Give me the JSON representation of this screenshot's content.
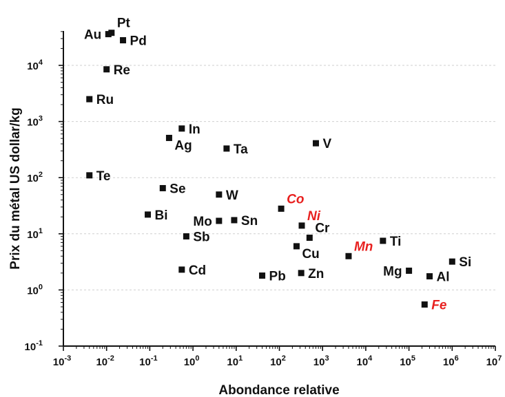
{
  "chart_data": {
    "type": "scatter",
    "xlabel": "Abondance relative",
    "ylabel": "Prix du métal US dollar/kg",
    "xscale": "log",
    "yscale": "log",
    "xlim": [
      0.001,
      10000000
    ],
    "ylim": [
      0.1,
      100000
    ],
    "x_tick_exponents": [
      -3,
      -2,
      -1,
      0,
      1,
      2,
      3,
      4,
      5,
      6,
      7
    ],
    "y_tick_exponents": [
      -1,
      0,
      1,
      2,
      3,
      4
    ],
    "grid": "horizontal dashed",
    "point_color": "#111111",
    "label_color": "#111111",
    "highlight_color": "#e8201f",
    "points": [
      {
        "label": "Pt",
        "x": 0.013,
        "y": 38000,
        "label_pos": "above-right",
        "highlight": false
      },
      {
        "label": "Au",
        "x": 0.011,
        "y": 36000,
        "label_pos": "left",
        "highlight": false
      },
      {
        "label": "Pd",
        "x": 0.024,
        "y": 28000,
        "label_pos": "right",
        "highlight": false
      },
      {
        "label": "Re",
        "x": 0.01,
        "y": 8500,
        "label_pos": "right",
        "highlight": false
      },
      {
        "label": "Ru",
        "x": 0.004,
        "y": 2500,
        "label_pos": "right",
        "highlight": false
      },
      {
        "label": "In",
        "x": 0.55,
        "y": 750,
        "label_pos": "right",
        "highlight": false
      },
      {
        "label": "Ag",
        "x": 0.28,
        "y": 510,
        "label_pos": "below-right",
        "highlight": false
      },
      {
        "label": "Ta",
        "x": 6,
        "y": 330,
        "label_pos": "right",
        "highlight": false
      },
      {
        "label": "V",
        "x": 700,
        "y": 410,
        "label_pos": "right",
        "highlight": false
      },
      {
        "label": "Te",
        "x": 0.004,
        "y": 110,
        "label_pos": "right",
        "highlight": false
      },
      {
        "label": "Se",
        "x": 0.2,
        "y": 65,
        "label_pos": "right",
        "highlight": false
      },
      {
        "label": "W",
        "x": 4,
        "y": 50,
        "label_pos": "right",
        "highlight": false
      },
      {
        "label": "Co",
        "x": 110,
        "y": 28,
        "label_pos": "above-right",
        "highlight": true
      },
      {
        "label": "Bi",
        "x": 0.09,
        "y": 22,
        "label_pos": "right",
        "highlight": false
      },
      {
        "label": "Mo",
        "x": 4,
        "y": 17,
        "label_pos": "left",
        "highlight": false
      },
      {
        "label": "Sn",
        "x": 9,
        "y": 17.5,
        "label_pos": "right",
        "highlight": false
      },
      {
        "label": "Ni",
        "x": 330,
        "y": 14,
        "label_pos": "above-right",
        "highlight": true
      },
      {
        "label": "Cr",
        "x": 500,
        "y": 8.5,
        "label_pos": "above-right",
        "highlight": false
      },
      {
        "label": "Sb",
        "x": 0.7,
        "y": 9,
        "label_pos": "right",
        "highlight": false
      },
      {
        "label": "Ti",
        "x": 25000,
        "y": 7.5,
        "label_pos": "right",
        "highlight": false
      },
      {
        "label": "Cu",
        "x": 250,
        "y": 6,
        "label_pos": "below-right",
        "highlight": false
      },
      {
        "label": "Mn",
        "x": 4000,
        "y": 4,
        "label_pos": "above-right",
        "highlight": true
      },
      {
        "label": "Si",
        "x": 1000000,
        "y": 3.2,
        "label_pos": "right",
        "highlight": false
      },
      {
        "label": "Cd",
        "x": 0.55,
        "y": 2.3,
        "label_pos": "right",
        "highlight": false
      },
      {
        "label": "Mg",
        "x": 100000,
        "y": 2.2,
        "label_pos": "left",
        "highlight": false
      },
      {
        "label": "Zn",
        "x": 320,
        "y": 2,
        "label_pos": "right",
        "highlight": false
      },
      {
        "label": "Pb",
        "x": 40,
        "y": 1.8,
        "label_pos": "right",
        "highlight": false
      },
      {
        "label": "Al",
        "x": 300000,
        "y": 1.75,
        "label_pos": "right",
        "highlight": false
      },
      {
        "label": "Fe",
        "x": 230000,
        "y": 0.55,
        "label_pos": "right",
        "highlight": true
      }
    ]
  }
}
